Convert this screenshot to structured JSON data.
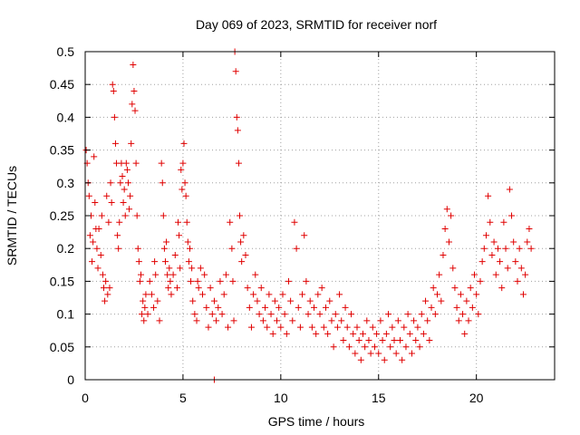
{
  "chart_data": {
    "type": "scatter",
    "title": "Day 069 of 2023, SRMTID for receiver norf",
    "xlabel": "GPS time / hours",
    "ylabel": "SRMTID / TECUs",
    "xlim": [
      0,
      24
    ],
    "ylim": [
      0,
      0.5
    ],
    "xticks": [
      {
        "value": 0,
        "label": "0"
      },
      {
        "value": 5,
        "label": "5"
      },
      {
        "value": 10,
        "label": "10"
      },
      {
        "value": 15,
        "label": "15"
      },
      {
        "value": 20,
        "label": "20"
      }
    ],
    "yticks": [
      {
        "value": 0,
        "label": "0"
      },
      {
        "value": 0.05,
        "label": "0.05"
      },
      {
        "value": 0.1,
        "label": "0.1"
      },
      {
        "value": 0.15,
        "label": "0.15"
      },
      {
        "value": 0.2,
        "label": "0.2"
      },
      {
        "value": 0.25,
        "label": "0.25"
      },
      {
        "value": 0.3,
        "label": "0.3"
      },
      {
        "value": 0.35,
        "label": "0.35"
      },
      {
        "value": 0.4,
        "label": "0.4"
      },
      {
        "value": 0.45,
        "label": "0.45"
      },
      {
        "value": 0.5,
        "label": "0.5"
      }
    ],
    "grid": true,
    "marker": "+",
    "color": "#e00000",
    "series": [
      {
        "name": "SRMTID",
        "points": [
          [
            0.05,
            0.35
          ],
          [
            0.1,
            0.33
          ],
          [
            0.15,
            0.3
          ],
          [
            0.2,
            0.28
          ],
          [
            0.25,
            0.22
          ],
          [
            0.3,
            0.25
          ],
          [
            0.35,
            0.18
          ],
          [
            0.4,
            0.21
          ],
          [
            0.45,
            0.34
          ],
          [
            0.5,
            0.27
          ],
          [
            0.55,
            0.23
          ],
          [
            0.6,
            0.2
          ],
          [
            0.65,
            0.17
          ],
          [
            0.7,
            0.23
          ],
          [
            0.8,
            0.19
          ],
          [
            0.85,
            0.25
          ],
          [
            0.9,
            0.16
          ],
          [
            0.95,
            0.14
          ],
          [
            1.0,
            0.12
          ],
          [
            1.05,
            0.15
          ],
          [
            1.1,
            0.28
          ],
          [
            1.15,
            0.13
          ],
          [
            1.2,
            0.24
          ],
          [
            1.25,
            0.14
          ],
          [
            1.3,
            0.3
          ],
          [
            1.35,
            0.27
          ],
          [
            1.4,
            0.45
          ],
          [
            1.45,
            0.44
          ],
          [
            1.5,
            0.4
          ],
          [
            1.55,
            0.36
          ],
          [
            1.6,
            0.33
          ],
          [
            1.65,
            0.22
          ],
          [
            1.7,
            0.2
          ],
          [
            1.75,
            0.24
          ],
          [
            1.8,
            0.3
          ],
          [
            1.85,
            0.33
          ],
          [
            1.9,
            0.31
          ],
          [
            1.95,
            0.27
          ],
          [
            2.0,
            0.29
          ],
          [
            2.05,
            0.25
          ],
          [
            2.1,
            0.33
          ],
          [
            2.15,
            0.32
          ],
          [
            2.2,
            0.3
          ],
          [
            2.25,
            0.26
          ],
          [
            2.3,
            0.28
          ],
          [
            2.35,
            0.36
          ],
          [
            2.4,
            0.42
          ],
          [
            2.45,
            0.48
          ],
          [
            2.5,
            0.44
          ],
          [
            2.55,
            0.41
          ],
          [
            2.6,
            0.33
          ],
          [
            2.65,
            0.25
          ],
          [
            2.7,
            0.2
          ],
          [
            2.75,
            0.18
          ],
          [
            2.8,
            0.15
          ],
          [
            2.85,
            0.16
          ],
          [
            2.9,
            0.1
          ],
          [
            2.95,
            0.12
          ],
          [
            3.0,
            0.09
          ],
          [
            3.05,
            0.11
          ],
          [
            3.1,
            0.13
          ],
          [
            3.2,
            0.1
          ],
          [
            3.3,
            0.15
          ],
          [
            3.4,
            0.13
          ],
          [
            3.5,
            0.11
          ],
          [
            3.55,
            0.18
          ],
          [
            3.6,
            0.16
          ],
          [
            3.7,
            0.12
          ],
          [
            3.8,
            0.09
          ],
          [
            3.9,
            0.33
          ],
          [
            3.95,
            0.3
          ],
          [
            4.0,
            0.25
          ],
          [
            4.05,
            0.2
          ],
          [
            4.1,
            0.18
          ],
          [
            4.15,
            0.21
          ],
          [
            4.2,
            0.16
          ],
          [
            4.25,
            0.14
          ],
          [
            4.3,
            0.17
          ],
          [
            4.35,
            0.15
          ],
          [
            4.4,
            0.13
          ],
          [
            4.5,
            0.16
          ],
          [
            4.6,
            0.19
          ],
          [
            4.7,
            0.14
          ],
          [
            4.75,
            0.24
          ],
          [
            4.8,
            0.22
          ],
          [
            4.85,
            0.17
          ],
          [
            4.9,
            0.32
          ],
          [
            4.95,
            0.29
          ],
          [
            5.0,
            0.33
          ],
          [
            5.05,
            0.36
          ],
          [
            5.1,
            0.3
          ],
          [
            5.15,
            0.28
          ],
          [
            5.2,
            0.24
          ],
          [
            5.25,
            0.21
          ],
          [
            5.3,
            0.18
          ],
          [
            5.35,
            0.2
          ],
          [
            5.4,
            0.15
          ],
          [
            5.45,
            0.17
          ],
          [
            5.5,
            0.12
          ],
          [
            5.6,
            0.1
          ],
          [
            5.7,
            0.09
          ],
          [
            5.75,
            0.15
          ],
          [
            5.8,
            0.14
          ],
          [
            5.9,
            0.17
          ],
          [
            6.0,
            0.13
          ],
          [
            6.1,
            0.16
          ],
          [
            6.2,
            0.11
          ],
          [
            6.3,
            0.08
          ],
          [
            6.4,
            0.14
          ],
          [
            6.5,
            0.1
          ],
          [
            6.6,
            0.12
          ],
          [
            6.7,
            0.09
          ],
          [
            6.8,
            0.11
          ],
          [
            6.9,
            0.15
          ],
          [
            7.0,
            0.1
          ],
          [
            7.1,
            0.13
          ],
          [
            7.2,
            0.16
          ],
          [
            7.3,
            0.08
          ],
          [
            7.4,
            0.24
          ],
          [
            7.5,
            0.2
          ],
          [
            7.55,
            0.15
          ],
          [
            7.6,
            0.09
          ],
          [
            7.65,
            0.5
          ],
          [
            7.7,
            0.47
          ],
          [
            7.75,
            0.4
          ],
          [
            7.8,
            0.38
          ],
          [
            7.85,
            0.33
          ],
          [
            7.9,
            0.25
          ],
          [
            7.95,
            0.21
          ],
          [
            8.0,
            0.18
          ],
          [
            8.1,
            0.22
          ],
          [
            8.2,
            0.19
          ],
          [
            8.3,
            0.14
          ],
          [
            8.4,
            0.11
          ],
          [
            8.5,
            0.08
          ],
          [
            8.6,
            0.13
          ],
          [
            8.7,
            0.16
          ],
          [
            8.8,
            0.12
          ],
          [
            8.9,
            0.1
          ],
          [
            9.0,
            0.14
          ],
          [
            9.1,
            0.09
          ],
          [
            9.2,
            0.11
          ],
          [
            9.3,
            0.08
          ],
          [
            9.4,
            0.13
          ],
          [
            9.5,
            0.1
          ],
          [
            9.6,
            0.07
          ],
          [
            9.7,
            0.12
          ],
          [
            9.8,
            0.09
          ],
          [
            9.9,
            0.11
          ],
          [
            10.0,
            0.08
          ],
          [
            10.1,
            0.13
          ],
          [
            10.2,
            0.1
          ],
          [
            10.3,
            0.07
          ],
          [
            10.4,
            0.15
          ],
          [
            10.5,
            0.12
          ],
          [
            10.6,
            0.09
          ],
          [
            10.7,
            0.24
          ],
          [
            10.8,
            0.2
          ],
          [
            10.9,
            0.11
          ],
          [
            11.0,
            0.08
          ],
          [
            11.1,
            0.13
          ],
          [
            11.2,
            0.22
          ],
          [
            11.3,
            0.15
          ],
          [
            11.4,
            0.1
          ],
          [
            11.5,
            0.12
          ],
          [
            11.6,
            0.08
          ],
          [
            11.7,
            0.11
          ],
          [
            11.8,
            0.07
          ],
          [
            11.9,
            0.13
          ],
          [
            12.0,
            0.1
          ],
          [
            12.1,
            0.14
          ],
          [
            12.2,
            0.08
          ],
          [
            12.3,
            0.11
          ],
          [
            12.4,
            0.07
          ],
          [
            12.5,
            0.12
          ],
          [
            12.6,
            0.09
          ],
          [
            12.7,
            0.05
          ],
          [
            12.8,
            0.1
          ],
          [
            12.9,
            0.08
          ],
          [
            13.0,
            0.13
          ],
          [
            13.1,
            0.09
          ],
          [
            13.2,
            0.06
          ],
          [
            13.3,
            0.11
          ],
          [
            13.4,
            0.08
          ],
          [
            13.5,
            0.05
          ],
          [
            13.6,
            0.1
          ],
          [
            13.7,
            0.07
          ],
          [
            13.8,
            0.04
          ],
          [
            13.9,
            0.08
          ],
          [
            14.0,
            0.06
          ],
          [
            14.1,
            0.03
          ],
          [
            14.2,
            0.07
          ],
          [
            14.3,
            0.05
          ],
          [
            14.4,
            0.09
          ],
          [
            14.5,
            0.06
          ],
          [
            14.6,
            0.04
          ],
          [
            14.7,
            0.08
          ],
          [
            14.8,
            0.05
          ],
          [
            14.9,
            0.07
          ],
          [
            15.0,
            0.04
          ],
          [
            15.1,
            0.09
          ],
          [
            15.2,
            0.06
          ],
          [
            15.3,
            0.03
          ],
          [
            15.4,
            0.07
          ],
          [
            15.5,
            0.1
          ],
          [
            15.6,
            0.05
          ],
          [
            15.7,
            0.08
          ],
          [
            15.8,
            0.06
          ],
          [
            15.9,
            0.04
          ],
          [
            16.0,
            0.09
          ],
          [
            16.1,
            0.06
          ],
          [
            16.2,
            0.03
          ],
          [
            16.3,
            0.08
          ],
          [
            16.4,
            0.05
          ],
          [
            16.5,
            0.1
          ],
          [
            16.6,
            0.07
          ],
          [
            16.7,
            0.04
          ],
          [
            16.8,
            0.09
          ],
          [
            16.9,
            0.06
          ],
          [
            17.0,
            0.08
          ],
          [
            17.1,
            0.05
          ],
          [
            17.2,
            0.1
          ],
          [
            17.3,
            0.07
          ],
          [
            17.4,
            0.12
          ],
          [
            17.5,
            0.09
          ],
          [
            17.6,
            0.06
          ],
          [
            17.7,
            0.11
          ],
          [
            17.8,
            0.14
          ],
          [
            17.9,
            0.1
          ],
          [
            18.0,
            0.13
          ],
          [
            18.1,
            0.16
          ],
          [
            18.2,
            0.12
          ],
          [
            18.3,
            0.19
          ],
          [
            18.4,
            0.23
          ],
          [
            18.5,
            0.26
          ],
          [
            18.6,
            0.21
          ],
          [
            18.7,
            0.25
          ],
          [
            18.8,
            0.17
          ],
          [
            18.9,
            0.14
          ],
          [
            19.0,
            0.11
          ],
          [
            19.1,
            0.09
          ],
          [
            19.2,
            0.13
          ],
          [
            19.3,
            0.1
          ],
          [
            19.4,
            0.07
          ],
          [
            19.5,
            0.12
          ],
          [
            19.6,
            0.09
          ],
          [
            19.7,
            0.14
          ],
          [
            19.8,
            0.11
          ],
          [
            19.9,
            0.16
          ],
          [
            20.0,
            0.13
          ],
          [
            20.1,
            0.1
          ],
          [
            20.2,
            0.15
          ],
          [
            20.3,
            0.18
          ],
          [
            20.4,
            0.2
          ],
          [
            20.5,
            0.22
          ],
          [
            20.6,
            0.28
          ],
          [
            20.7,
            0.24
          ],
          [
            20.8,
            0.19
          ],
          [
            20.9,
            0.21
          ],
          [
            21.0,
            0.16
          ],
          [
            21.1,
            0.2
          ],
          [
            21.2,
            0.18
          ],
          [
            21.3,
            0.14
          ],
          [
            21.4,
            0.24
          ],
          [
            21.5,
            0.2
          ],
          [
            21.6,
            0.17
          ],
          [
            21.7,
            0.29
          ],
          [
            21.8,
            0.25
          ],
          [
            21.9,
            0.21
          ],
          [
            22.0,
            0.18
          ],
          [
            22.1,
            0.15
          ],
          [
            22.2,
            0.2
          ],
          [
            22.3,
            0.17
          ],
          [
            22.4,
            0.13
          ],
          [
            22.5,
            0.16
          ],
          [
            22.6,
            0.21
          ],
          [
            22.7,
            0.23
          ],
          [
            22.8,
            0.2
          ],
          [
            6.6,
            0.0
          ]
        ]
      }
    ]
  }
}
